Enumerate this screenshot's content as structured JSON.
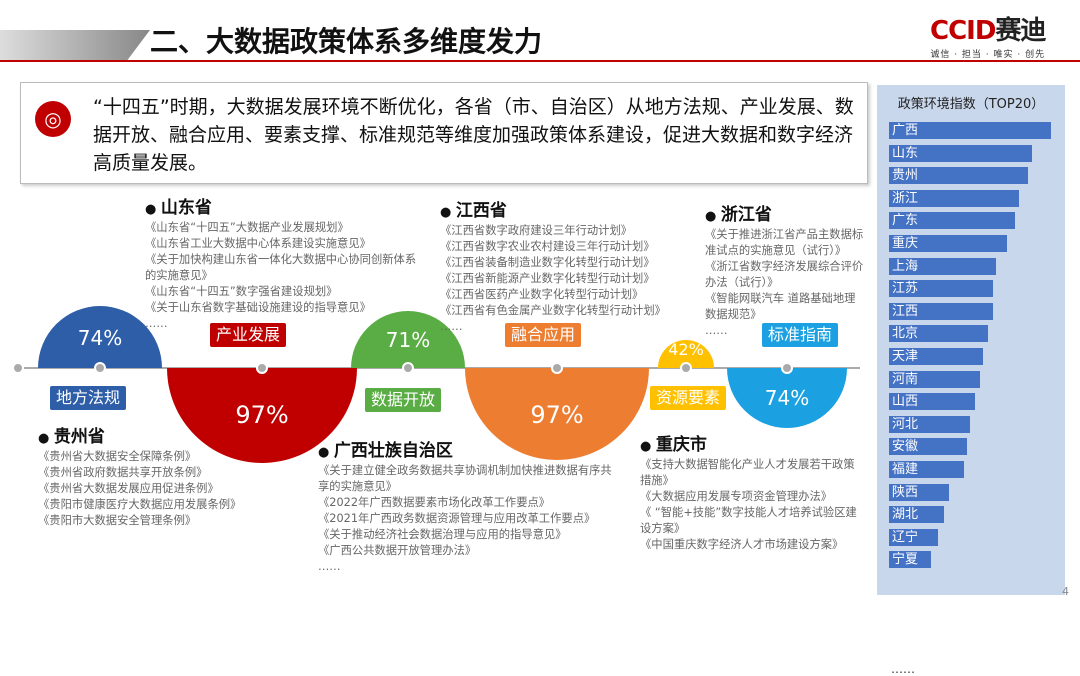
{
  "title": "二、大数据政策体系多维度发力",
  "logo": {
    "brand": "CCID",
    "brand_cn": "赛迪",
    "slogan": "诚信 · 担当 · 唯实 · 创先"
  },
  "intro": {
    "icon": "ccid-seal-icon",
    "text": "“十四五”时期，大数据发展环境不断优化，各省（市、自治区）从地方法规、产业发展、数据开放、融合应用、要素支撑、标准规范等维度加强政策体系建设，促进大数据和数字经济高质量发展。"
  },
  "ranking": {
    "title": "政策环境指数（TOP20）",
    "bar_color": "#4472c4",
    "items": [
      {
        "name": "广西",
        "relative": 100
      },
      {
        "name": "山东",
        "relative": 88
      },
      {
        "name": "贵州",
        "relative": 86
      },
      {
        "name": "浙江",
        "relative": 80
      },
      {
        "name": "广东",
        "relative": 78
      },
      {
        "name": "重庆",
        "relative": 73
      },
      {
        "name": "上海",
        "relative": 66
      },
      {
        "name": "江苏",
        "relative": 64
      },
      {
        "name": "江西",
        "relative": 64
      },
      {
        "name": "北京",
        "relative": 61
      },
      {
        "name": "天津",
        "relative": 58
      },
      {
        "name": "河南",
        "relative": 56
      },
      {
        "name": "山西",
        "relative": 53
      },
      {
        "name": "河北",
        "relative": 50
      },
      {
        "name": "安徽",
        "relative": 48
      },
      {
        "name": "福建",
        "relative": 46
      },
      {
        "name": "陕西",
        "relative": 37
      },
      {
        "name": "湖北",
        "relative": 34
      },
      {
        "name": "辽宁",
        "relative": 30
      },
      {
        "name": "宁夏",
        "relative": 26
      }
    ],
    "more": "……"
  },
  "dimensions": [
    {
      "label": "地方法规",
      "value": "74%",
      "color": "#2e5ea8"
    },
    {
      "label": "产业发展",
      "value": "97%",
      "color": "#c00000"
    },
    {
      "label": "数据开放",
      "value": "71%",
      "color": "#5aac44"
    },
    {
      "label": "融合应用",
      "value": "97%",
      "color": "#ed7d31"
    },
    {
      "label": "资源要素",
      "value": "42%",
      "color": "#ffc000"
    },
    {
      "label": "标准指南",
      "value": "74%",
      "color": "#1ba1e2"
    }
  ],
  "provinces": {
    "shandong": {
      "name": "山东省",
      "items": [
        "《山东省“十四五”大数据产业发展规划》",
        "《山东省工业大数据中心体系建设实施意见》",
        "《关于加快构建山东省一体化大数据中心协同创新体系的实施意见》",
        "《山东省“十四五”数字强省建设规划》",
        "《关于山东省数字基础设施建设的指导意见》",
        "……"
      ]
    },
    "jiangxi": {
      "name": "江西省",
      "items": [
        "《江西省数字政府建设三年行动计划》",
        "《江西省数字农业农村建设三年行动计划》",
        "《江西省装备制造业数字化转型行动计划》",
        "《江西省新能源产业数字化转型行动计划》",
        "《江西省医药产业数字化转型行动计划》",
        "《江西省有色金属产业数字化转型行动计划》",
        "……"
      ]
    },
    "zhejiang": {
      "name": "浙江省",
      "items": [
        "《关于推进浙江省产品主数据标准试点的实施意见（试行）》",
        "《浙江省数字经济发展综合评价办法（试行）》",
        "《智能网联汽车 道路基础地理数据规范》",
        "……"
      ]
    },
    "guizhou": {
      "name": "贵州省",
      "items": [
        "《贵州省大数据安全保障条例》",
        "《贵州省政府数据共享开放条例》",
        "《贵州省大数据发展应用促进条例》",
        "《贵阳市健康医疗大数据应用发展条例》",
        "《贵阳市大数据安全管理条例》"
      ]
    },
    "guangxi": {
      "name": "广西壮族自治区",
      "items": [
        "《关于建立健全政务数据共享协调机制加快推进数据有序共享的实施意见》",
        "《2022年广西数据要素市场化改革工作要点》",
        "《2021年广西政务数据资源管理与应用改革工作要点》",
        "《关于推动经济社会数据治理与应用的指导意见》",
        "《广西公共数据开放管理办法》",
        "……"
      ]
    },
    "chongqing": {
      "name": "重庆市",
      "items": [
        "《支持大数据智能化产业人才发展若干政策措施》",
        "《大数据应用发展专项资金管理办法》",
        "《 “智能+技能”数字技能人才培养试验区建设方案》",
        "《中国重庆数字经济人才市场建设方案》"
      ]
    }
  },
  "page_number": "4"
}
